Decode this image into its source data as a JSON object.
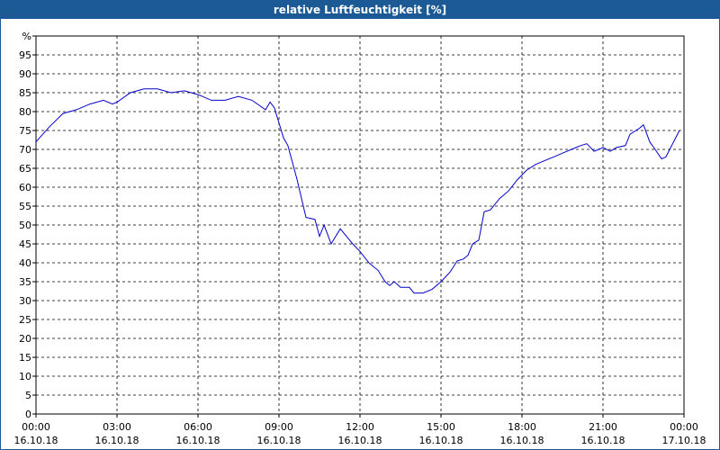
{
  "chart_data": {
    "type": "line",
    "title": "relative Luftfeuchtigkeit [%]",
    "x": [
      0,
      0.5,
      1,
      1.5,
      2,
      2.5,
      2.83,
      3,
      3.5,
      4,
      4.5,
      5,
      5.5,
      6,
      6.5,
      7,
      7.5,
      8,
      8.5,
      8.67,
      8.83,
      9,
      9.17,
      9.33,
      9.67,
      10,
      10.33,
      10.5,
      10.67,
      10.93,
      11.27,
      11.5,
      11.73,
      12,
      12.33,
      12.67,
      12.93,
      13.1,
      13.27,
      13.5,
      13.83,
      14,
      14.33,
      14.67,
      15,
      15.33,
      15.6,
      15.83,
      16,
      16.17,
      16.4,
      16.6,
      16.83,
      17.17,
      17.5,
      17.83,
      18.17,
      18.5,
      18.83,
      19.17,
      19.5,
      19.83,
      20.17,
      20.4,
      20.67,
      21,
      21.27,
      21.5,
      21.83,
      22,
      22.33,
      22.5,
      22.73,
      22.93,
      23.17,
      23.33,
      23.83
    ],
    "series": [
      {
        "name": "relative Luftfeuchtigkeit",
        "color": "#0000cc",
        "values": [
          72,
          76,
          79.5,
          80.5,
          82,
          83,
          82,
          82.5,
          85,
          86,
          86,
          85,
          85.5,
          84.5,
          83,
          83,
          84,
          83,
          80.5,
          82.5,
          81,
          77,
          73,
          71,
          62,
          52,
          51.5,
          47,
          50,
          45,
          49,
          47,
          45,
          43,
          40,
          38,
          35,
          34,
          35,
          33.5,
          33.5,
          32,
          32,
          33,
          35,
          37.5,
          40.5,
          41,
          42,
          45,
          46,
          53.5,
          54,
          57,
          59,
          62,
          64.5,
          66,
          67,
          68,
          69,
          70,
          71,
          71.5,
          69.5,
          70.5,
          69.5,
          70.5,
          71,
          74,
          75.5,
          76.5,
          72,
          70,
          67.5,
          68,
          75
        ]
      }
    ],
    "xlim": [
      0,
      24
    ],
    "xticks": [
      {
        "value": 0,
        "label": [
          "00:00",
          "16.10.18"
        ]
      },
      {
        "value": 3,
        "label": [
          "03:00",
          "16.10.18"
        ]
      },
      {
        "value": 6,
        "label": [
          "06:00",
          "16.10.18"
        ]
      },
      {
        "value": 9,
        "label": [
          "09:00",
          "16.10.18"
        ]
      },
      {
        "value": 12,
        "label": [
          "12:00",
          "16.10.18"
        ]
      },
      {
        "value": 15,
        "label": [
          "15:00",
          "16.10.18"
        ]
      },
      {
        "value": 18,
        "label": [
          "18:00",
          "16.10.18"
        ]
      },
      {
        "value": 21,
        "label": [
          "21:00",
          "16.10.18"
        ]
      },
      {
        "value": 24,
        "label": [
          "00:00",
          "17.10.18"
        ]
      }
    ],
    "ylim": [
      0,
      100
    ],
    "yticks": [
      0,
      5,
      10,
      15,
      20,
      25,
      30,
      35,
      40,
      45,
      50,
      55,
      60,
      65,
      70,
      75,
      80,
      85,
      90,
      95,
      {
        "value": 100,
        "label": "%"
      }
    ],
    "grid": true
  }
}
